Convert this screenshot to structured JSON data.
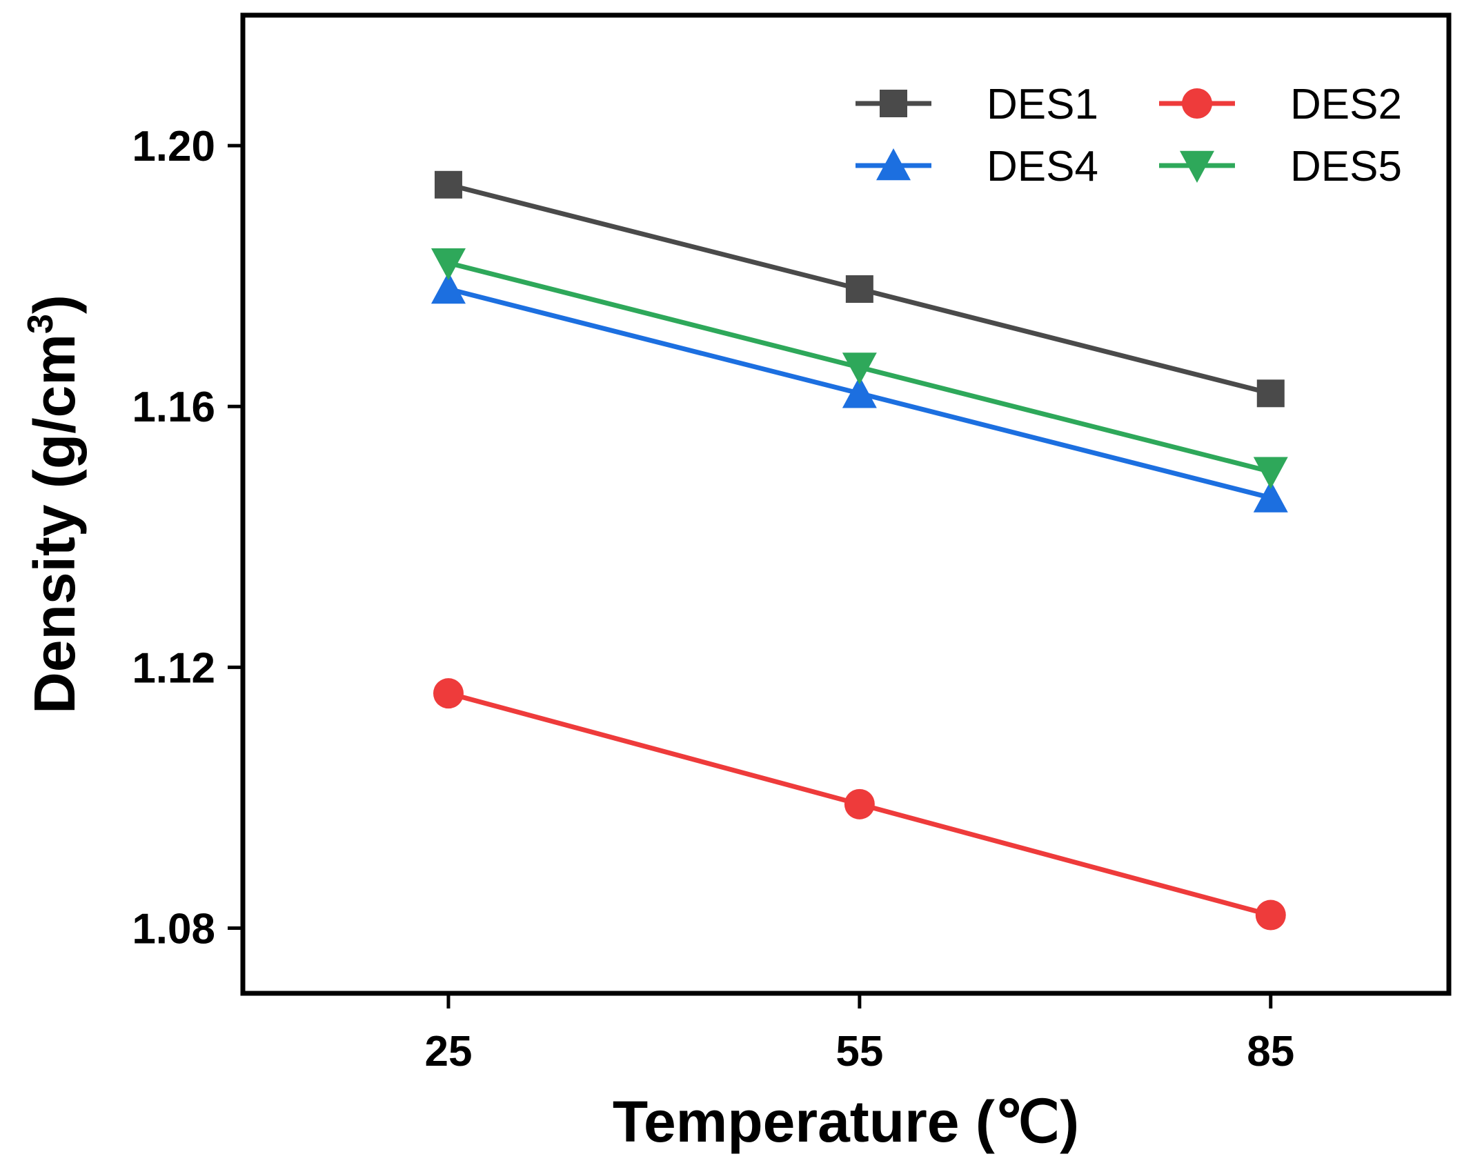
{
  "chart_data": {
    "type": "line",
    "title": "",
    "xlabel": "Temperature (℃)",
    "ylabel_main": "Density (g/cm",
    "ylabel_sup": "3",
    "ylabel_close": ")",
    "x": [
      25,
      55,
      85
    ],
    "xticks": [
      "25",
      "55",
      "85"
    ],
    "xlim": [
      10,
      98
    ],
    "ylim": [
      1.07,
      1.22
    ],
    "yticks": [
      1.08,
      1.12,
      1.16,
      1.2
    ],
    "ytick_labels": [
      "1.08",
      "1.12",
      "1.16",
      "1.20"
    ],
    "grid": false,
    "legend_position": "top-right",
    "series": [
      {
        "name": "DES1",
        "marker": "square",
        "color": "#4a4a4a",
        "values": [
          1.194,
          1.178,
          1.162
        ]
      },
      {
        "name": "DES2",
        "marker": "circle",
        "color": "#ee3b3b",
        "values": [
          1.116,
          1.099,
          1.082
        ]
      },
      {
        "name": "DES4",
        "marker": "triangle-up",
        "color": "#1c6fe0",
        "values": [
          1.178,
          1.162,
          1.146
        ]
      },
      {
        "name": "DES5",
        "marker": "triangle-down",
        "color": "#2ea85a",
        "values": [
          1.182,
          1.166,
          1.15
        ]
      }
    ]
  }
}
